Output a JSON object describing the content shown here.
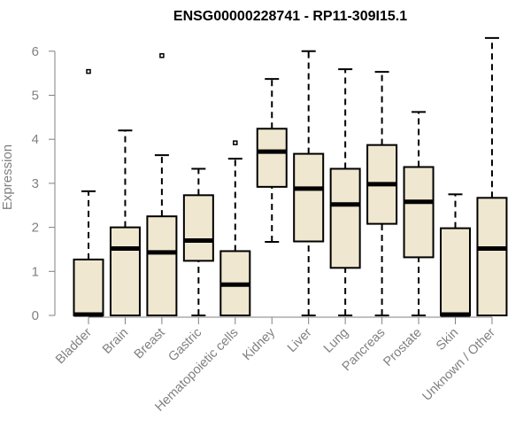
{
  "chart_data": {
    "type": "box",
    "title": "ENSG00000228741 - RP11-309I15.1",
    "xlabel": "",
    "ylabel": "Expression",
    "ylim": [
      0,
      6.3
    ],
    "yticks": [
      0,
      1,
      2,
      3,
      4,
      5,
      6
    ],
    "box_fill": "#efe7cf",
    "box_stroke": "#000000",
    "categories": [
      "Bladder",
      "Brain",
      "Breast",
      "Gastric",
      "Hematopoietic cells",
      "Kidney",
      "Liver",
      "Lung",
      "Pancreas",
      "Prostate",
      "Skin",
      "Unknown / Other"
    ],
    "boxes": [
      {
        "min": 0,
        "q1": 0,
        "median": 0.02,
        "q3": 1.27,
        "max": 2.82,
        "outliers": [
          5.54
        ]
      },
      {
        "min": 0,
        "q1": 0,
        "median": 1.52,
        "q3": 2.0,
        "max": 4.2,
        "outliers": []
      },
      {
        "min": 0,
        "q1": 0,
        "median": 1.43,
        "q3": 2.25,
        "max": 3.64,
        "outliers": [
          5.9
        ]
      },
      {
        "min": 0,
        "q1": 1.24,
        "median": 1.7,
        "q3": 2.73,
        "max": 3.33,
        "outliers": []
      },
      {
        "min": 0,
        "q1": 0,
        "median": 0.7,
        "q3": 1.46,
        "max": 3.56,
        "outliers": [
          3.92
        ]
      },
      {
        "min": 1.67,
        "q1": 2.92,
        "median": 3.72,
        "q3": 4.24,
        "max": 5.37,
        "outliers": []
      },
      {
        "min": 0,
        "q1": 1.68,
        "median": 2.88,
        "q3": 3.67,
        "max": 6.0,
        "outliers": []
      },
      {
        "min": 0,
        "q1": 1.08,
        "median": 2.52,
        "q3": 3.33,
        "max": 5.59,
        "outliers": []
      },
      {
        "min": 0,
        "q1": 2.08,
        "median": 2.98,
        "q3": 3.87,
        "max": 5.53,
        "outliers": []
      },
      {
        "min": 0,
        "q1": 1.32,
        "median": 2.58,
        "q3": 3.37,
        "max": 4.62,
        "outliers": []
      },
      {
        "min": 0,
        "q1": 0,
        "median": 0.02,
        "q3": 1.98,
        "max": 2.75,
        "outliers": []
      },
      {
        "min": 0,
        "q1": 0,
        "median": 1.52,
        "q3": 2.67,
        "max": 6.3,
        "outliers": []
      }
    ]
  }
}
